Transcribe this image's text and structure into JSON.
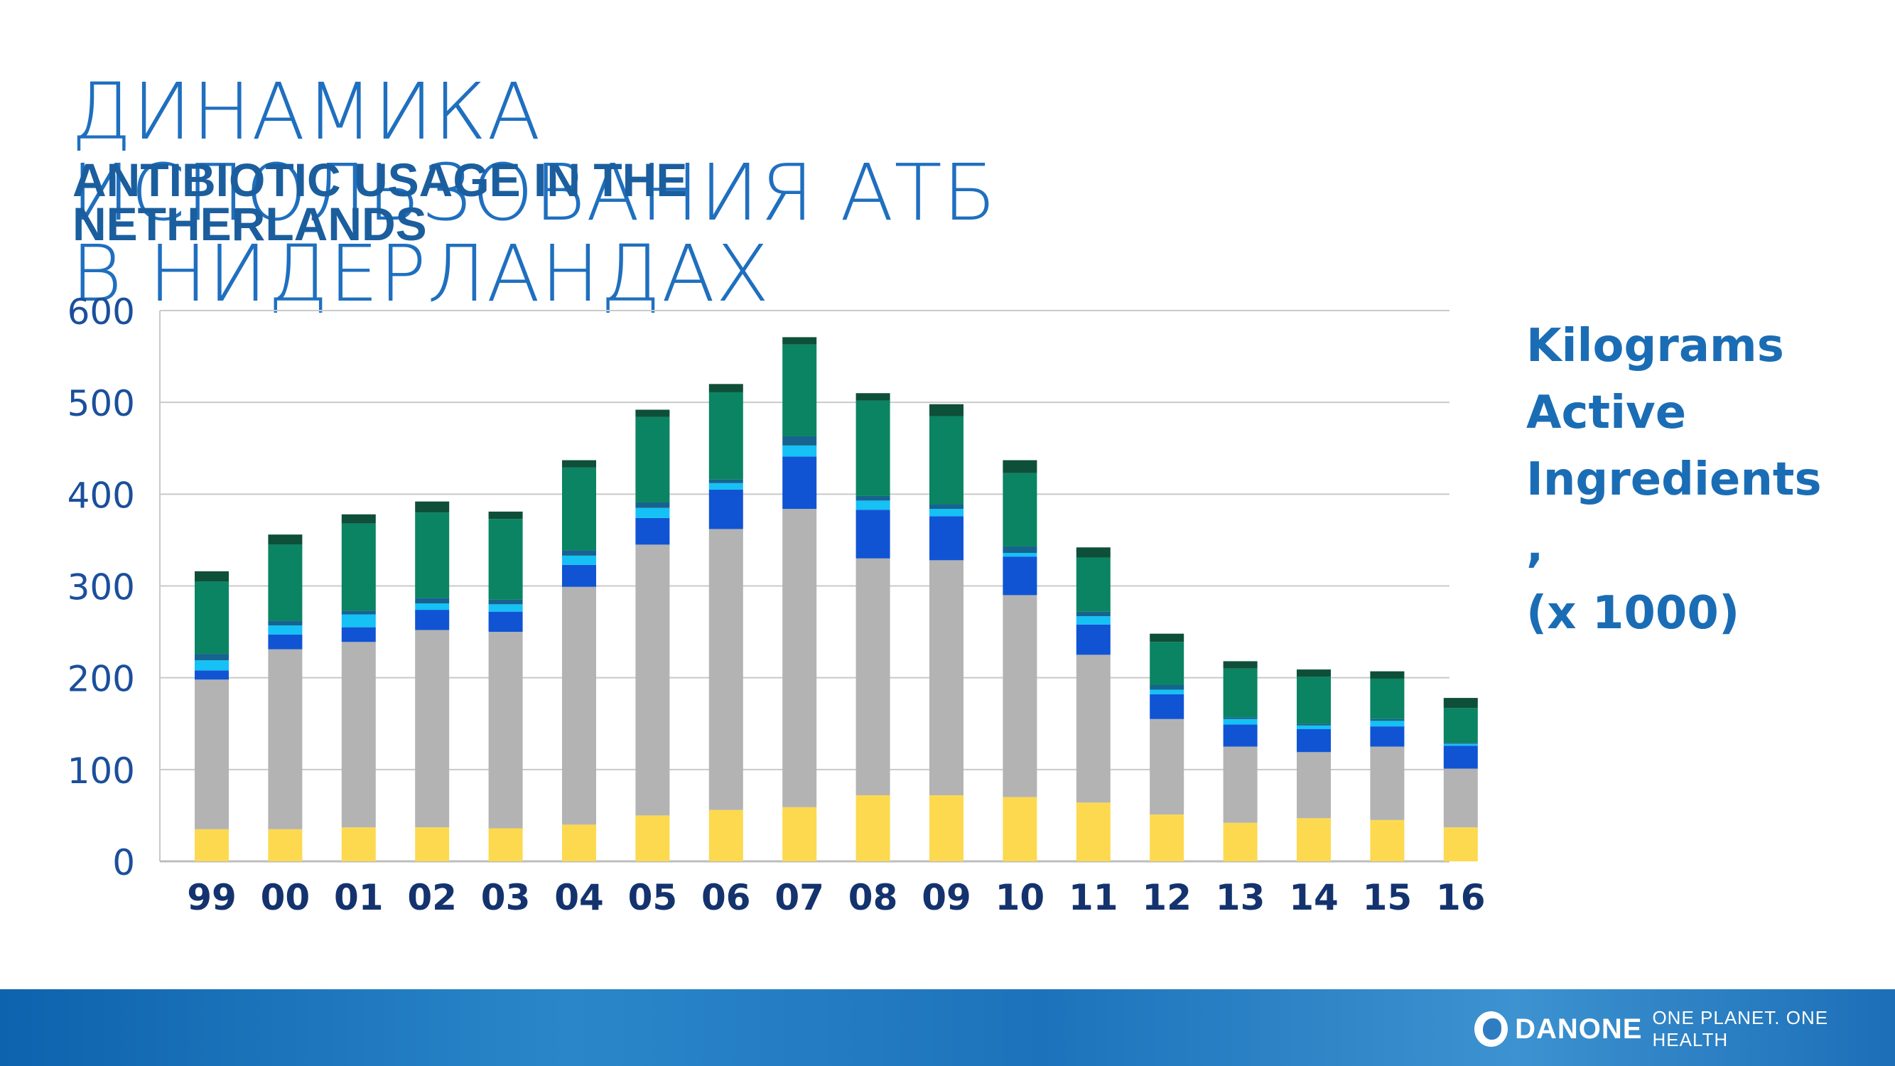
{
  "title_ru": "ДИНАМИКА ИСПОЛЬЗОВАНИЯ АТБ В НИДЕРЛАНДАХ",
  "title_en": "ANTIBIOTIC USAGE IN THE NETHERLANDS",
  "side_label": "Kilograms\nActive\nIngredients\n,\n(x 1000)",
  "brand": {
    "name": "DANONE",
    "tagline": "ONE PLANET. ONE HEALTH",
    "logo_icon": "danone-globe-icon"
  },
  "chart_data": {
    "type": "bar",
    "stacked": true,
    "categories": [
      "99",
      "00",
      "01",
      "02",
      "03",
      "04",
      "05",
      "06",
      "07",
      "08",
      "09",
      "10",
      "11",
      "12",
      "13",
      "14",
      "15",
      "16"
    ],
    "ylim": [
      0,
      600
    ],
    "yticks": [
      0,
      100,
      200,
      300,
      400,
      500,
      600
    ],
    "ylabel": "Kilograms Active Ingredients , (x 1000)",
    "grid": true,
    "series": [
      {
        "color": "#fdd94f",
        "values": [
          35,
          35,
          37,
          37,
          36,
          40,
          50,
          56,
          59,
          72,
          72,
          70,
          64,
          51,
          42,
          47,
          45,
          37
        ]
      },
      {
        "color": "#b3b3b3",
        "values": [
          163,
          196,
          202,
          215,
          214,
          259,
          295,
          306,
          325,
          258,
          256,
          220,
          161,
          104,
          83,
          72,
          80,
          64
        ]
      },
      {
        "color": "#1054d4",
        "values": [
          10,
          16,
          16,
          22,
          22,
          24,
          29,
          43,
          57,
          53,
          48,
          42,
          33,
          27,
          24,
          25,
          22,
          25
        ]
      },
      {
        "color": "#15c1f5",
        "values": [
          11,
          10,
          14,
          7,
          8,
          10,
          11,
          7,
          12,
          10,
          8,
          4,
          9,
          5,
          6,
          4,
          6,
          2
        ]
      },
      {
        "color": "#17638f",
        "values": [
          7,
          5,
          4,
          6,
          5,
          6,
          6,
          4,
          10,
          5,
          5,
          7,
          5,
          5,
          2,
          2,
          2,
          1
        ]
      },
      {
        "color": "#0a8462",
        "values": [
          79,
          83,
          95,
          93,
          88,
          90,
          93,
          95,
          100,
          104,
          96,
          80,
          59,
          47,
          53,
          51,
          44,
          38
        ]
      },
      {
        "color": "#0e4f39",
        "values": [
          11,
          11,
          10,
          12,
          8,
          8,
          8,
          9,
          8,
          8,
          13,
          14,
          11,
          9,
          8,
          8,
          8,
          11
        ]
      }
    ]
  }
}
